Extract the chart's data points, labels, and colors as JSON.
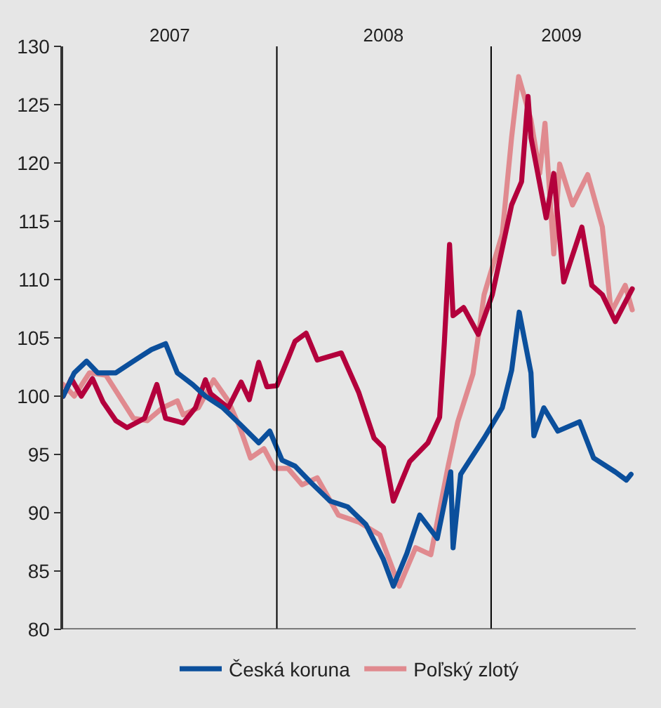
{
  "chart_data": {
    "type": "line",
    "xlim": [
      "2007-01-01",
      "2009-09-05"
    ],
    "xticks": [
      {
        "value": "2007-07-02",
        "label": "2007"
      },
      {
        "value": "2008-07-01",
        "label": "2008"
      },
      {
        "value": "2009-05-01",
        "label": "2009"
      }
    ],
    "ylim": [
      80,
      130
    ],
    "yticks": [
      80,
      85,
      90,
      95,
      100,
      105,
      110,
      115,
      120,
      125,
      130
    ],
    "grid": false,
    "legend": "bottom",
    "line_style": "solid",
    "marker": "none",
    "ref_lines": [
      {
        "axis": "x",
        "value": "2008-01-01",
        "color": "#000000"
      },
      {
        "axis": "x",
        "value": "2009-01-01",
        "color": "#000000"
      }
    ],
    "series": [
      {
        "name": "Poľský zlotý",
        "color": "#e08a8f",
        "x": [
          "2007-01-01",
          "2007-01-20",
          "2007-02-15",
          "2007-03-15",
          "2007-05-01",
          "2007-05-25",
          "2007-06-20",
          "2007-07-15",
          "2007-07-25",
          "2007-08-20",
          "2007-09-15",
          "2007-10-10",
          "2007-10-30",
          "2007-11-17",
          "2007-12-10",
          "2007-12-28",
          "2008-01-20",
          "2008-02-13",
          "2008-03-10",
          "2008-04-15",
          "2008-05-20",
          "2008-06-25",
          "2008-07-28",
          "2008-08-25",
          "2008-09-20",
          "2008-10-20",
          "2008-11-05",
          "2008-12-01",
          "2008-12-20",
          "2009-01-20",
          "2009-02-05",
          "2009-02-17",
          "2009-03-10",
          "2009-03-25",
          "2009-04-03",
          "2009-04-18",
          "2009-04-28",
          "2009-05-20",
          "2009-06-15",
          "2009-07-10",
          "2009-07-25",
          "2009-08-18",
          "2009-08-30"
        ],
        "values": [
          101,
          100,
          102,
          101.8,
          98.1,
          97.9,
          99,
          99.6,
          98.4,
          99,
          101.4,
          99.6,
          97.3,
          94.7,
          95.5,
          93.8,
          93.8,
          92.4,
          93,
          89.8,
          89.2,
          88.1,
          83.7,
          87,
          86.4,
          94.1,
          97.8,
          101.9,
          108.7,
          113.9,
          122.2,
          127.4,
          123.7,
          119.1,
          123.4,
          112.2,
          119.9,
          116.4,
          119,
          114.5,
          107.2,
          109.5,
          107.4
        ]
      },
      {
        "color": "#b3003c",
        "x": [
          "2007-01-01",
          "2007-01-15",
          "2007-02-01",
          "2007-02-20",
          "2007-03-10",
          "2007-04-01",
          "2007-04-20",
          "2007-05-20",
          "2007-06-10",
          "2007-06-25",
          "2007-07-25",
          "2007-08-15",
          "2007-09-01",
          "2007-09-10",
          "2007-10-10",
          "2007-11-01",
          "2007-11-15",
          "2007-12-01",
          "2007-12-15",
          "2008-01-01",
          "2008-01-20",
          "2008-02-01",
          "2008-02-20",
          "2008-03-10",
          "2008-04-20",
          "2008-05-20",
          "2008-06-15",
          "2008-07-01",
          "2008-07-18",
          "2008-08-15",
          "2008-09-15",
          "2008-10-05",
          "2008-10-13",
          "2008-10-22",
          "2008-10-28",
          "2008-11-15",
          "2008-12-10",
          "2009-01-03",
          "2009-02-05",
          "2009-02-22",
          "2009-03-05",
          "2009-03-10",
          "2009-04-05",
          "2009-04-18",
          "2009-05-05",
          "2009-06-05",
          "2009-06-22",
          "2009-07-10",
          "2009-08-01",
          "2009-08-30"
        ],
        "values": [
          100,
          101.5,
          100,
          101.5,
          99.5,
          97.9,
          97.3,
          98.1,
          101,
          98.1,
          97.7,
          99,
          101.4,
          100.2,
          99,
          101.2,
          99.7,
          102.9,
          100.8,
          100.9,
          103.2,
          104.7,
          105.4,
          103.1,
          103.7,
          100.3,
          96.4,
          95.6,
          91,
          94.4,
          96,
          98.2,
          104.5,
          113,
          106.9,
          107.6,
          105.3,
          108.7,
          116.4,
          118.4,
          125.7,
          122.2,
          115.3,
          119.1,
          109.8,
          114.5,
          109.5,
          108.7,
          106.4,
          109.2
        ]
      },
      {
        "name": "Česká koruna",
        "color": "#0b4f9c",
        "x": [
          "2007-01-01",
          "2007-01-20",
          "2007-02-10",
          "2007-03-01",
          "2007-04-01",
          "2007-05-01",
          "2007-06-01",
          "2007-06-25",
          "2007-07-15",
          "2007-08-10",
          "2007-09-01",
          "2007-10-01",
          "2007-11-01",
          "2007-12-01",
          "2007-12-20",
          "2008-01-10",
          "2008-02-01",
          "2008-03-01",
          "2008-04-01",
          "2008-05-01",
          "2008-06-01",
          "2008-07-01",
          "2008-07-18",
          "2008-08-10",
          "2008-09-01",
          "2008-10-01",
          "2008-10-24",
          "2008-10-28",
          "2008-11-10",
          "2008-12-20",
          "2009-01-20",
          "2009-02-05",
          "2009-02-18",
          "2009-03-10",
          "2009-03-15",
          "2009-04-01",
          "2009-04-25",
          "2009-06-01",
          "2009-06-25",
          "2009-08-01",
          "2009-08-20",
          "2009-08-28"
        ],
        "values": [
          100,
          102,
          103,
          102,
          102,
          103,
          104,
          104.5,
          102,
          101,
          100,
          99,
          97.5,
          96,
          97,
          94.5,
          94,
          92.5,
          91,
          90.5,
          89,
          86,
          83.7,
          86.5,
          89.8,
          87.8,
          93.5,
          87,
          93.3,
          96.4,
          99,
          102.2,
          107.2,
          102,
          96.6,
          99,
          97,
          97.8,
          94.7,
          93.5,
          92.8,
          93.3
        ]
      }
    ]
  }
}
